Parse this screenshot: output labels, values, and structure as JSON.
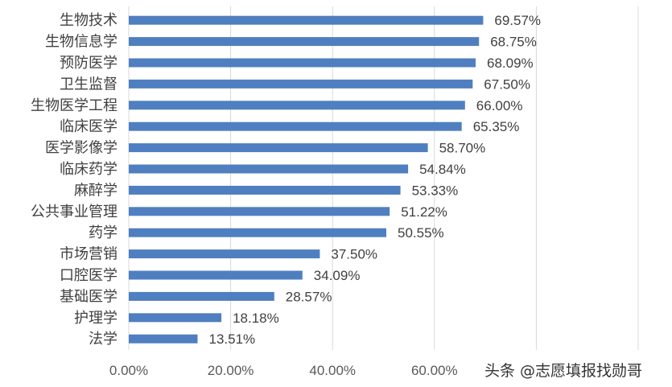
{
  "chart_data": {
    "type": "bar",
    "orientation": "horizontal",
    "categories": [
      "生物技术",
      "生物信息学",
      "预防医学",
      "卫生监督",
      "生物医学工程",
      "临床医学",
      "医学影像学",
      "临床药学",
      "麻醉学",
      "公共事业管理",
      "药学",
      "市场营销",
      "口腔医学",
      "基础医学",
      "护理学",
      "法学"
    ],
    "values": [
      69.57,
      68.75,
      68.09,
      67.5,
      66.0,
      65.35,
      58.7,
      54.84,
      53.33,
      51.22,
      50.55,
      37.5,
      34.09,
      28.57,
      18.18,
      13.51
    ],
    "value_labels": [
      "69.57%",
      "68.75%",
      "68.09%",
      "67.50%",
      "66.00%",
      "65.35%",
      "58.70%",
      "54.84%",
      "53.33%",
      "51.22%",
      "50.55%",
      "37.50%",
      "34.09%",
      "28.57%",
      "18.18%",
      "13.51%"
    ],
    "xlim": [
      0,
      100
    ],
    "x_ticks": [
      0,
      20,
      40,
      60
    ],
    "x_tick_labels": [
      "0.00%",
      "20.00%",
      "40.00%",
      "60.00%"
    ],
    "grid": true,
    "bar_color": "#4f7fc0",
    "title": "",
    "xlabel": "",
    "ylabel": ""
  },
  "watermark": "头条 @志愿填报找勋哥"
}
